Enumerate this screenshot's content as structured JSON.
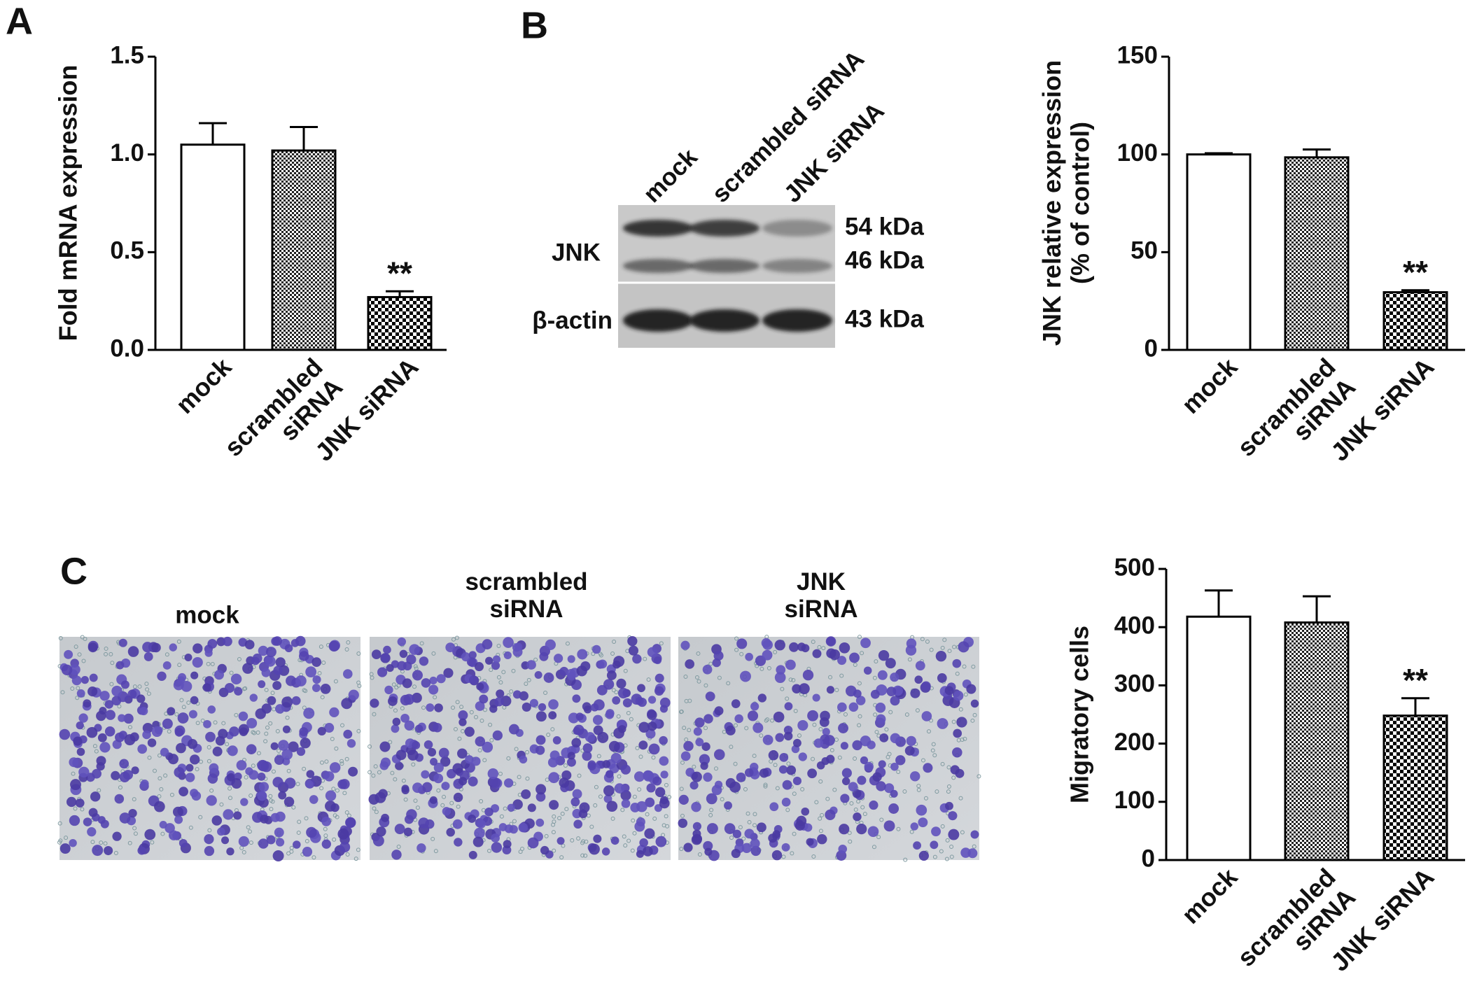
{
  "panel_labels": [
    "A",
    "B",
    "C"
  ],
  "blot": {
    "lanes": [
      "mock",
      "scrambled siRNA",
      "JNK siRNA"
    ],
    "rows": [
      {
        "label": "JNK",
        "bands": [
          "54 kDa",
          "46 kDa"
        ]
      },
      {
        "label": "β-actin",
        "bands": [
          "43 kDa"
        ]
      }
    ]
  },
  "micrographs": {
    "labels": [
      "mock",
      "scrambled\nsiRNA",
      "JNK\nsiRNA"
    ]
  },
  "chart_data": [
    {
      "type": "bar",
      "ylabel": "Fold mRNA expression",
      "categories": [
        "mock",
        "scrambled\nsiRNA",
        "JNK siRNA"
      ],
      "values": [
        1.05,
        1.02,
        0.27
      ],
      "errors": [
        0.11,
        0.12,
        0.03
      ],
      "significance": [
        null,
        null,
        "**"
      ],
      "bar_patterns": [
        "solid",
        "checker-fine",
        "checker-coarse"
      ],
      "ylim": [
        0,
        1.5
      ],
      "yticks": [
        {
          "value": 0,
          "label": "0.0"
        },
        0.5,
        {
          "value": 1,
          "label": "1.0"
        },
        1.5
      ]
    },
    {
      "type": "bar",
      "ylabel": "JNK relative expression\n(% of control)",
      "categories": [
        "mock",
        "scrambled\nsiRNA",
        "JNK siRNA"
      ],
      "values": [
        100,
        98.5,
        29.5
      ],
      "errors": [
        0.6,
        4,
        1
      ],
      "significance": [
        null,
        null,
        "**"
      ],
      "bar_patterns": [
        "solid",
        "checker-fine",
        "checker-coarse"
      ],
      "ylim": [
        0,
        150
      ],
      "yticks": [
        0,
        50,
        100,
        150
      ]
    },
    {
      "type": "bar",
      "ylabel": "Migratory cells",
      "categories": [
        "mock",
        "scrambled\nsiRNA",
        "JNK siRNA"
      ],
      "values": [
        418,
        408,
        248
      ],
      "errors": [
        45,
        45,
        30
      ],
      "significance": [
        null,
        null,
        "**"
      ],
      "bar_patterns": [
        "solid",
        "checker-fine",
        "checker-coarse"
      ],
      "ylim": [
        0,
        500
      ],
      "yticks": [
        0,
        100,
        200,
        300,
        400,
        500
      ]
    }
  ]
}
